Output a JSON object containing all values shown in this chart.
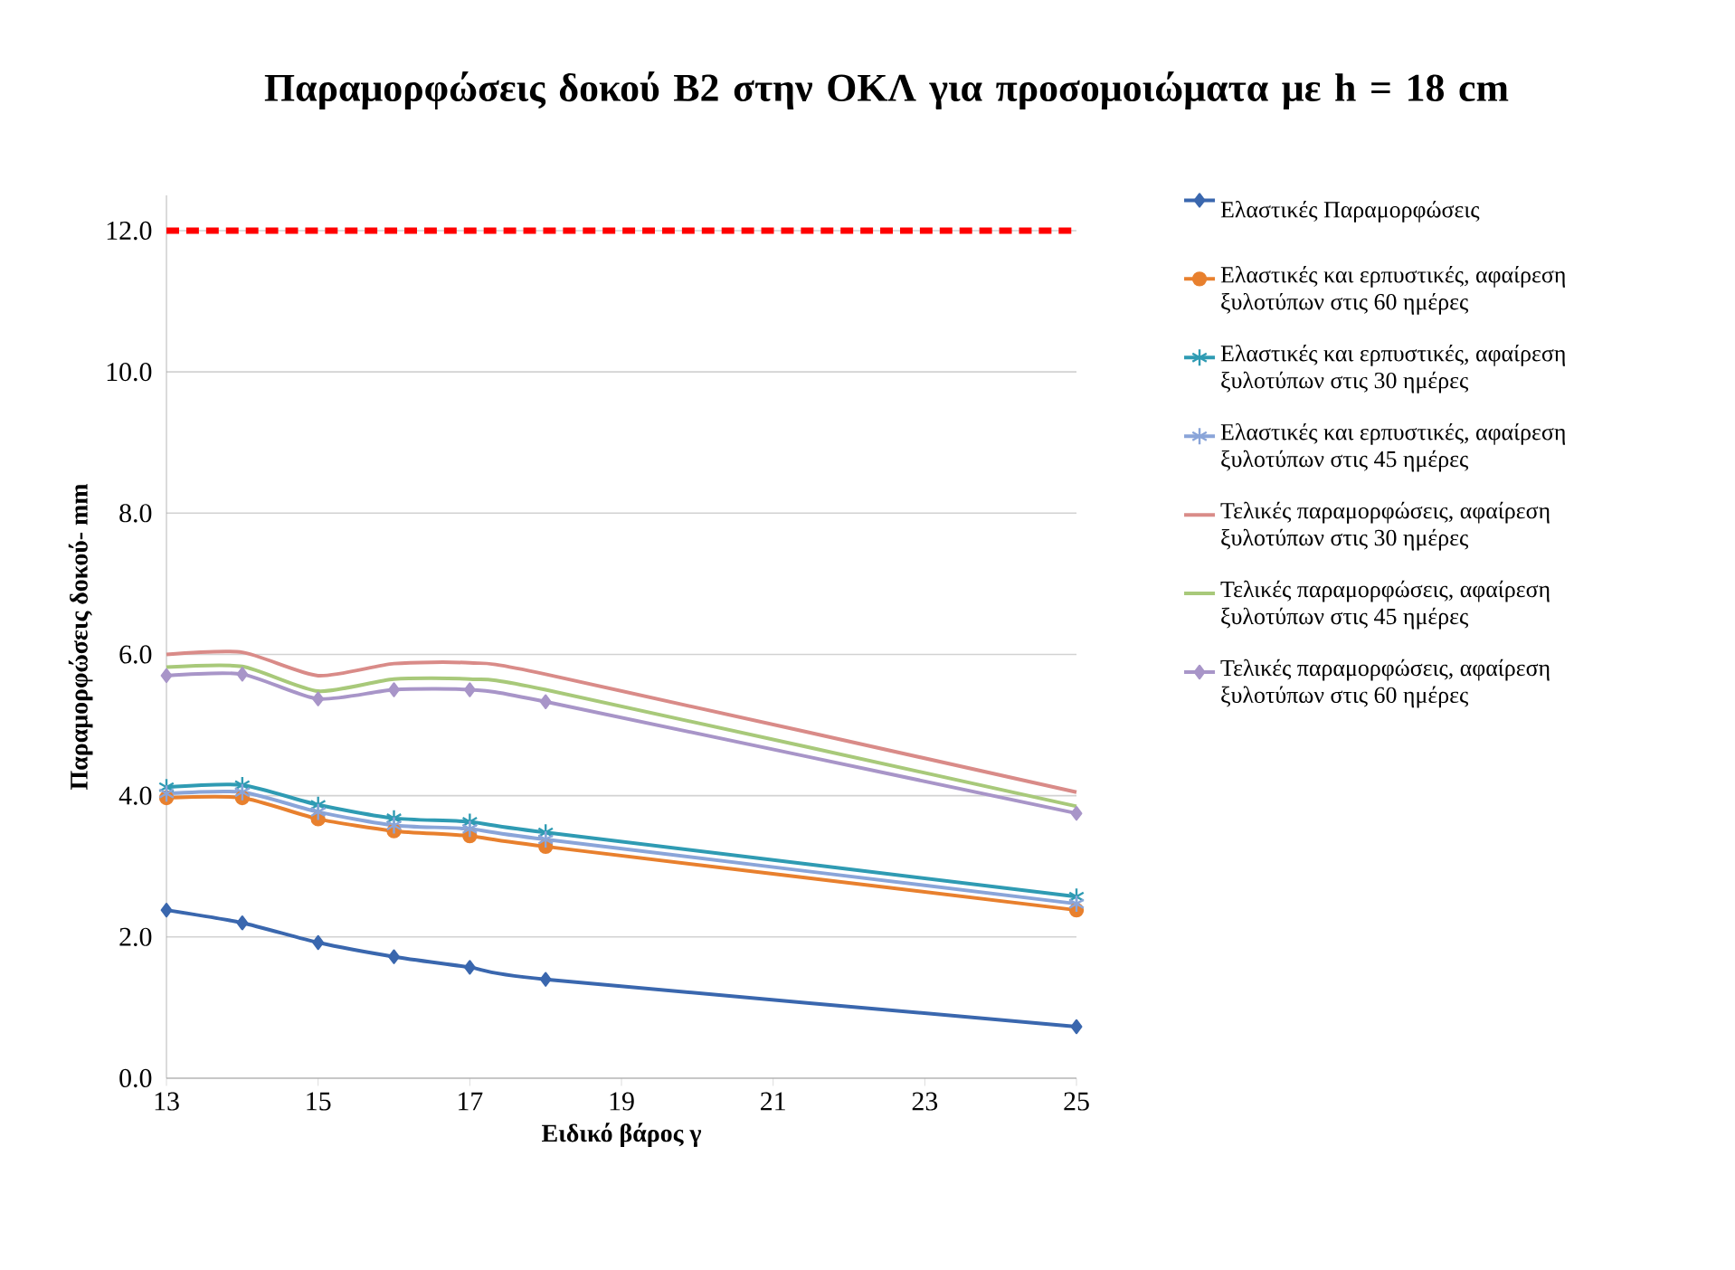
{
  "chart_data": {
    "type": "line",
    "title": "Παραμορφώσεις δοκού Β2 στην ΟΚΛ για προσομοιώματα με h = 18 cm",
    "xlabel": "Ειδικό βάρος γ",
    "ylabel": "Παραμορφώσεις δοκού- mm",
    "x": [
      13,
      14,
      15,
      16,
      17,
      18,
      25
    ],
    "series": [
      {
        "name": "Ελαστικές Παραμορφώσεις",
        "color": "#3a67ae",
        "marker": "diamond",
        "values": [
          2.38,
          2.2,
          1.92,
          1.72,
          1.57,
          1.4,
          0.73
        ]
      },
      {
        "name": "Ελαστικές και ερπυστικές, αφαίρεση ξυλοτύπων στις 60 ημέρες",
        "color": "#e8802e",
        "marker": "circle",
        "values": [
          3.97,
          3.97,
          3.67,
          3.5,
          3.43,
          3.28,
          2.38
        ]
      },
      {
        "name": "Ελαστικές και ερπυστικές, αφαίρεση ξυλοτύπων στις 30 ημέρες",
        "color": "#2f9bb3",
        "marker": "cross",
        "values": [
          4.12,
          4.15,
          3.87,
          3.68,
          3.63,
          3.48,
          2.57
        ]
      },
      {
        "name": "Ελαστικές και ερπυστικές, αφαίρεση ξυλοτύπων στις 45 ημέρες",
        "color": "#8aa5d9",
        "marker": "cross",
        "values": [
          4.03,
          4.05,
          3.77,
          3.58,
          3.53,
          3.38,
          2.47
        ]
      },
      {
        "name": "Τελικές παραμορφώσεις, αφαίρεση ξυλοτύπων στις 30 ημέρες",
        "color": "#d98b88",
        "marker": "none",
        "values": [
          6.0,
          6.03,
          5.7,
          5.87,
          5.88,
          5.72,
          4.05
        ]
      },
      {
        "name": "Τελικές παραμορφώσεις, αφαίρεση ξυλοτύπων στις 45 ημέρες",
        "color": "#a8c97a",
        "marker": "none",
        "values": [
          5.82,
          5.83,
          5.48,
          5.65,
          5.65,
          5.5,
          3.85
        ]
      },
      {
        "name": "Τελικές παραμορφώσεις, αφαίρεση ξυλοτύπων στις 60 ημέρες",
        "color": "#a895c8",
        "marker": "diamond",
        "values": [
          5.7,
          5.72,
          5.37,
          5.5,
          5.5,
          5.33,
          3.75
        ]
      }
    ],
    "ref_lines": [
      {
        "axis": "y",
        "value": 12,
        "color": "#ff0000",
        "line_style": "dashed"
      }
    ],
    "xlim": [
      13,
      25
    ],
    "xticks": [
      13,
      15,
      17,
      19,
      21,
      23,
      25
    ],
    "ylim": [
      0,
      12.5
    ],
    "yticks": [
      {
        "value": 0,
        "label": "0.0"
      },
      {
        "value": 2,
        "label": "2.0"
      },
      {
        "value": 4,
        "label": "4.0"
      },
      {
        "value": 6,
        "label": "6.0"
      },
      {
        "value": 8,
        "label": "8.0"
      },
      {
        "value": 10,
        "label": "10.0"
      },
      {
        "value": 12,
        "label": "12.0"
      }
    ],
    "grid": "y",
    "legend": "right"
  }
}
